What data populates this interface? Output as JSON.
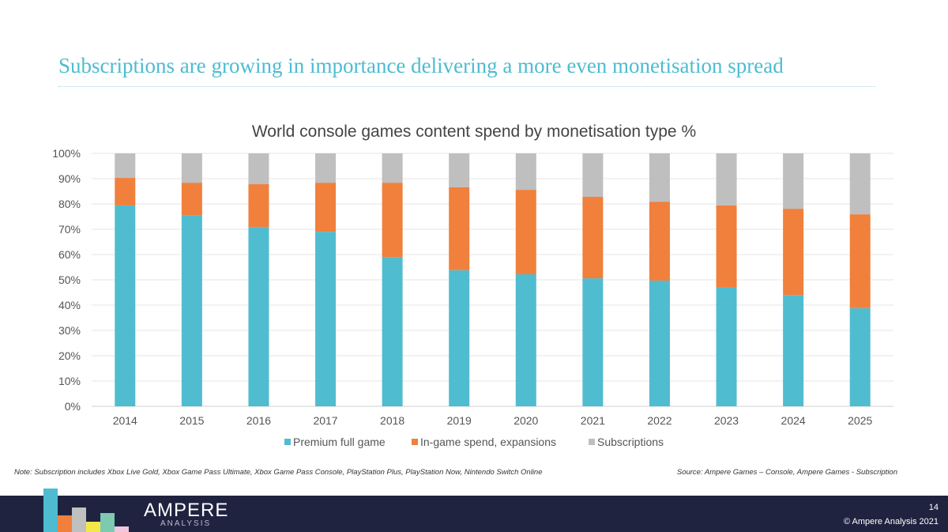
{
  "slide_title": "Subscriptions are growing in importance delivering a more even monetisation spread",
  "note": "Note: Subscription includes Xbox Live Gold, Xbox Game Pass Ultimate, Xbox Game Pass Console, PlayStation Plus, PlayStation Now, Nintendo Switch Online",
  "source": "Source: Ampere Games – Console, Ampere Games - Subscription",
  "footer": {
    "brand": "AMPERE",
    "brand_sub": "ANALYSIS",
    "page_number": "14",
    "copyright": "© Ampere Analysis 2021"
  },
  "chart_data": {
    "type": "bar",
    "stacked": true,
    "title": "World console games content spend by monetisation type %",
    "xlabel": "",
    "ylabel": "",
    "ylim": [
      0,
      100
    ],
    "y_ticks": [
      "0%",
      "10%",
      "20%",
      "30%",
      "40%",
      "50%",
      "60%",
      "70%",
      "80%",
      "90%",
      "100%"
    ],
    "grid": true,
    "legend_position": "bottom",
    "categories": [
      "2014",
      "2015",
      "2016",
      "2017",
      "2018",
      "2019",
      "2020",
      "2021",
      "2022",
      "2023",
      "2024",
      "2025"
    ],
    "series": [
      {
        "name": "Premium full game",
        "color": "#50bcd0",
        "values": [
          79.4,
          75.6,
          70.9,
          69.0,
          59.0,
          53.8,
          52.2,
          50.6,
          49.7,
          46.9,
          44.0,
          38.8
        ]
      },
      {
        "name": "In-game spend, expansions",
        "color": "#f0803c",
        "values": [
          10.9,
          12.8,
          16.9,
          19.4,
          29.4,
          32.8,
          33.4,
          32.2,
          31.2,
          32.5,
          34.1,
          37.1
        ]
      },
      {
        "name": "Subscriptions",
        "color": "#bfbfbf",
        "values": [
          9.7,
          11.6,
          12.2,
          11.6,
          11.6,
          13.4,
          14.4,
          17.2,
          19.1,
          20.6,
          21.9,
          24.1
        ]
      }
    ]
  }
}
